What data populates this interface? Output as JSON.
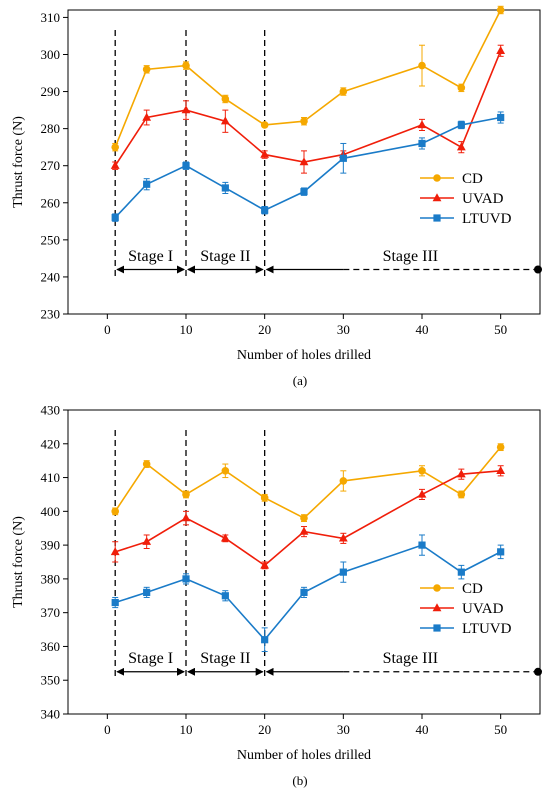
{
  "colors": {
    "CD": "#F5A800",
    "UVAD": "#F01E0A",
    "LTUVD": "#1A7BC8"
  },
  "chart_data": [
    {
      "type": "line",
      "panel_label": "(a)",
      "xlabel": "Number of holes drilled",
      "ylabel": "Thrust force (N)",
      "xlim": [
        -5,
        55
      ],
      "ylim": [
        230,
        312
      ],
      "xticks": [
        0,
        10,
        20,
        30,
        40,
        50
      ],
      "yticks": [
        230,
        240,
        250,
        260,
        270,
        280,
        290,
        300,
        310
      ],
      "legend_position": "right",
      "x": [
        1,
        5,
        10,
        15,
        20,
        25,
        30,
        40,
        45,
        50
      ],
      "series": [
        {
          "name": "CD",
          "marker": "circle",
          "values": [
            275,
            296,
            297,
            288,
            281,
            282,
            290,
            297,
            291,
            312
          ],
          "errors": [
            1,
            1,
            1,
            1,
            0.5,
            1,
            1,
            5.5,
            1,
            1
          ]
        },
        {
          "name": "UVAD",
          "marker": "triangle",
          "values": [
            270,
            283,
            285,
            282,
            273,
            271,
            273,
            281,
            275,
            301
          ],
          "errors": [
            1,
            2,
            2.5,
            3,
            1,
            3,
            1,
            1.5,
            1.5,
            1.5
          ]
        },
        {
          "name": "LTUVD",
          "marker": "square",
          "values": [
            256,
            265,
            270,
            264,
            258,
            263,
            272,
            276,
            281,
            283
          ],
          "errors": [
            1,
            1.5,
            1,
            1.5,
            1,
            1,
            4,
            1.5,
            1,
            1.5
          ]
        }
      ],
      "stage_lines_x": [
        1,
        10,
        20
      ],
      "stage_arrow_y": 242,
      "stages": [
        {
          "label": "Stage I",
          "from": 1,
          "to": 10
        },
        {
          "label": "Stage II",
          "from": 10,
          "to": 20
        },
        {
          "label": "Stage III",
          "from": 20,
          "to": 55
        }
      ]
    },
    {
      "type": "line",
      "panel_label": "(b)",
      "xlabel": "Number of holes drilled",
      "ylabel": "Thrust force (N)",
      "xlim": [
        -5,
        55
      ],
      "ylim": [
        340,
        430
      ],
      "xticks": [
        0,
        10,
        20,
        30,
        40,
        50
      ],
      "yticks": [
        340,
        350,
        360,
        370,
        380,
        390,
        400,
        410,
        420,
        430
      ],
      "legend_position": "right",
      "x": [
        1,
        5,
        10,
        15,
        20,
        25,
        30,
        40,
        45,
        50
      ],
      "series": [
        {
          "name": "CD",
          "marker": "circle",
          "values": [
            400,
            414,
            405,
            412,
            404,
            398,
            409,
            412,
            405,
            419
          ],
          "errors": [
            1,
            1,
            1,
            2,
            1,
            1,
            3,
            1.5,
            1,
            1
          ]
        },
        {
          "name": "UVAD",
          "marker": "triangle",
          "values": [
            388,
            391,
            398,
            392,
            384,
            394,
            392,
            405,
            411,
            412
          ],
          "errors": [
            3,
            2,
            2,
            1,
            1,
            1.5,
            1.5,
            1.5,
            1.5,
            1.5
          ]
        },
        {
          "name": "LTUVD",
          "marker": "square",
          "values": [
            373,
            376,
            380,
            375,
            362,
            376,
            382,
            390,
            382,
            388
          ],
          "errors": [
            1.5,
            1.5,
            1.5,
            1.5,
            3.5,
            1.5,
            3,
            3,
            2,
            2
          ]
        }
      ],
      "stage_lines_x": [
        1,
        10,
        20
      ],
      "stage_arrow_y": 352.5,
      "stages": [
        {
          "label": "Stage I",
          "from": 1,
          "to": 10
        },
        {
          "label": "Stage II",
          "from": 10,
          "to": 20
        },
        {
          "label": "Stage III",
          "from": 20,
          "to": 55
        }
      ]
    }
  ]
}
